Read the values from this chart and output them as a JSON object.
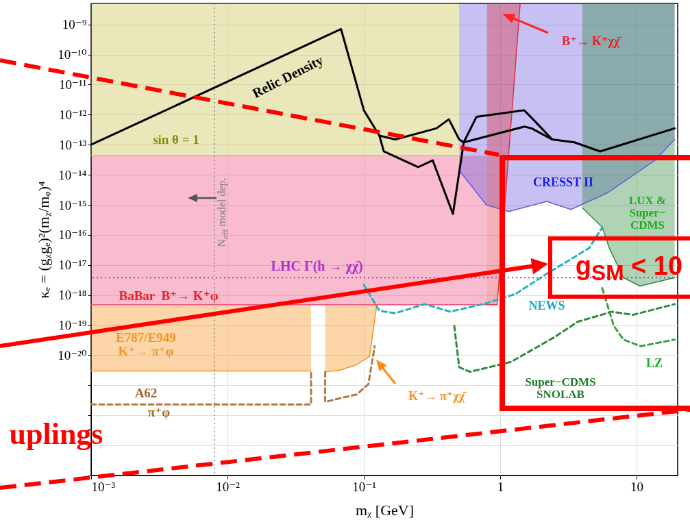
{
  "chart_data": {
    "type": "line",
    "xlabel": "mᵪ [GeV]",
    "ylabel": "κₑ = (gᵪgₑ)²(mᵪ/mᵩ)⁴",
    "log": "xy",
    "grid": true,
    "xlim": [
      0.001,
      20
    ],
    "xticks": [
      {
        "value": 0.001,
        "label": "10⁻³"
      },
      {
        "value": 0.01,
        "label": "10⁻²"
      },
      {
        "value": 0.1,
        "label": "10⁻¹"
      },
      1,
      10
    ],
    "ylim": [
      1e-24,
      5e-09
    ],
    "yticks": [
      {
        "value": 1e-09,
        "label": "10⁻⁹"
      },
      {
        "value": 1e-10,
        "label": "10⁻¹⁰"
      },
      {
        "value": 1e-11,
        "label": "10⁻¹¹"
      },
      {
        "value": 1e-12,
        "label": "10⁻¹²"
      },
      {
        "value": 1e-13,
        "label": "10⁻¹³"
      },
      {
        "value": 1e-14,
        "label": "10⁻¹⁴"
      },
      {
        "value": 1e-15,
        "label": "10⁻¹⁵"
      },
      {
        "value": 1e-16,
        "label": "10⁻¹⁶"
      },
      {
        "value": 1e-17,
        "label": "10⁻¹⁷"
      },
      {
        "value": 1e-18,
        "label": "10⁻¹⁸"
      },
      {
        "value": 1e-19,
        "label": "10⁻¹⁹"
      },
      {
        "value": 1e-20,
        "label": "10⁻²⁰"
      },
      {
        "value": 1e-21,
        "label": null
      },
      {
        "value": 1e-22,
        "label": null
      },
      {
        "value": 1e-23,
        "label": null
      },
      {
        "value": 1e-24,
        "label": null
      }
    ],
    "series": [
      {
        "color": "#c8c24a",
        "line_style": "solid",
        "x": [
          0.001,
          0.5
        ],
        "values": [
          4.3e-14,
          4.3e-14
        ],
        "lower": [
          4.3e-14,
          4.3e-14
        ],
        "upper": [
          5e-09,
          5e-09
        ]
      },
      {
        "color": "#f05080",
        "line_style": "solid",
        "x": [
          0.001,
          0.8
        ],
        "values": [
          4.8e-19,
          4.8e-19
        ],
        "lower": [
          4.8e-19,
          4.8e-19
        ],
        "upper": [
          4.3e-14,
          4.3e-14
        ]
      },
      {
        "color": "#f7931e",
        "line_style": "solid",
        "x": [
          0.001,
          0.041
        ],
        "values": [
          3e-21,
          3e-21
        ],
        "lower": [
          3e-21,
          3e-21
        ],
        "upper": [
          4.8e-19,
          4.8e-19
        ]
      },
      {
        "color": "#f7931e",
        "line_style": "solid",
        "x": [
          0.052,
          0.067,
          0.087,
          0.11,
          0.124
        ],
        "values": [
          2.8e-21,
          3.2e-21,
          4.7e-21,
          9e-21,
          4.2e-19
        ],
        "lower": [
          2.8e-21,
          3.2e-21,
          4.7e-21,
          9e-21,
          4.2e-19
        ],
        "upper": [
          4.8e-19,
          4.8e-19,
          4.8e-19,
          4.8e-19,
          4.8e-19
        ]
      },
      {
        "color": "#6a5ae0",
        "line_style": "solid",
        "x": [
          0.5,
          0.79,
          1.15,
          2.2,
          3.3,
          6.1,
          13.6,
          19
        ],
        "values": [
          1.4e-14,
          1e-15,
          6e-16,
          1.3e-15,
          7e-16,
          2.5e-15,
          3e-14,
          1.5e-13
        ],
        "lower": [
          1.4e-14,
          1e-15,
          6e-16,
          1.3e-15,
          7e-16,
          2.5e-15,
          3e-14,
          1.5e-13
        ],
        "upper": [
          5e-09,
          5e-09,
          5e-09,
          5e-09,
          5e-09,
          5e-09,
          5e-09,
          5e-09
        ]
      },
      {
        "color": "#2f8a3c",
        "line_style": "solid",
        "x": [
          4,
          5.6,
          6.3,
          8,
          10.6,
          19
        ],
        "values": [
          8e-16,
          1.8e-16,
          3.7e-17,
          3.8e-18,
          2e-18,
          3.8e-18
        ],
        "lower": [
          8e-16,
          1.8e-16,
          3.7e-17,
          3.8e-18,
          2e-18,
          3.8e-18
        ],
        "upper": [
          5e-09,
          5e-09,
          5e-09,
          5e-09,
          5e-09,
          5e-09
        ]
      },
      {
        "color": "#e0303c",
        "line_style": "solid",
        "x": [
          0.8,
          0.95,
          1.4
        ],
        "values": [
          4.8e-19,
          4.8e-19,
          5e-09
        ],
        "lower": [
          4.8e-19,
          4.8e-19,
          5e-09
        ],
        "upper": [
          5e-09,
          5e-09,
          5e-09
        ]
      },
      {
        "color": "#000000",
        "line_style": "solid",
        "x": [
          0.001,
          0.068,
          0.1,
          0.13,
          0.17,
          0.34,
          0.42,
          0.5,
          0.54,
          1.5,
          1.7,
          2.4,
          3.5,
          5.4,
          19
        ],
        "values": [
          1e-13,
          7e-10,
          1.4e-12,
          2e-13,
          1.5e-13,
          3.5e-13,
          7e-13,
          1.5e-13,
          1.2e-13,
          4e-13,
          3.5e-13,
          1.5e-13,
          1.2e-13,
          6e-14,
          3.5e-13
        ]
      },
      {
        "color": "#000000",
        "line_style": "solid",
        "x": [
          0.13,
          0.14,
          0.25,
          0.32,
          0.45,
          0.5,
          0.54,
          0.67,
          1.5,
          1.8,
          2.4
        ],
        "values": [
          2e-13,
          6e-14,
          1.8e-14,
          3e-14,
          5e-16,
          1.2e-14,
          1.2e-13,
          8.5e-13,
          1.4e-12,
          6e-13,
          1.5e-13
        ]
      },
      {
        "color": "#2ab0c0",
        "line_style": "dashed",
        "x": [
          0.1,
          0.13,
          0.17,
          0.28,
          0.43,
          0.8,
          1.3,
          2.1,
          4.5,
          5.6
        ],
        "values": [
          2.2e-18,
          3e-19,
          2.5e-19,
          5e-19,
          2.8e-19,
          5.4e-19,
          1.1e-18,
          4.5e-18,
          3.7e-17,
          1.8e-16
        ]
      },
      {
        "color": "#2e8b3a",
        "line_style": "dashed",
        "x": [
          0.46,
          0.5,
          0.6,
          1.2,
          2.5,
          3.7,
          6.6,
          9.4,
          19
        ],
        "values": [
          9.5e-20,
          4e-21,
          2.8e-21,
          6e-21,
          4e-20,
          1.3e-19,
          2.8e-19,
          2.2e-19,
          5e-19
        ]
      },
      {
        "color": "#3aa040",
        "line_style": "dashed",
        "x": [
          5.6,
          6.8,
          8,
          10.7,
          19
        ],
        "values": [
          1.7e-18,
          9.5e-20,
          3.3e-20,
          2e-20,
          3.3e-20
        ]
      },
      {
        "color": "#b07a40",
        "line_style": "dashed",
        "x": [
          0.001,
          0.041,
          0.041
        ],
        "values": [
          2.3e-22,
          2.3e-22,
          3e-21
        ]
      },
      {
        "color": "#b07a40",
        "line_style": "dashed",
        "x": [
          0.052,
          0.052,
          0.067,
          0.089,
          0.108,
          0.12
        ],
        "values": [
          2.8e-21,
          2.8e-22,
          3.7e-22,
          5e-22,
          1.1e-21,
          2e-20
        ]
      }
    ],
    "ref_lines": [
      {
        "axis": "y",
        "value": 3.8e-18,
        "label": "LHC Γ(h → χχ̄)",
        "color": "#b030c8",
        "line_style": "dotted"
      },
      {
        "axis": "x",
        "value": 0.008,
        "label": "N$_{eff}$ model dep.",
        "color": "#808080",
        "line_style": "dotted"
      }
    ],
    "annotations": [
      "Relic Density",
      "sin θ = 1",
      "BaBar  B⁺→ K⁺φ",
      "E787/E949\nK⁺→ π⁺φ",
      "A62",
      "π⁺φ",
      "K⁺→ π⁺χχ̄",
      "B⁺→ K⁺χχ̄",
      "CRESST II",
      "LUX &\nSuper−\nCDMS",
      "NEWS",
      "LZ",
      "Super−CDMS\nSNOLAB",
      "uplings",
      "g$_{SM}$ < 10"
    ]
  }
}
